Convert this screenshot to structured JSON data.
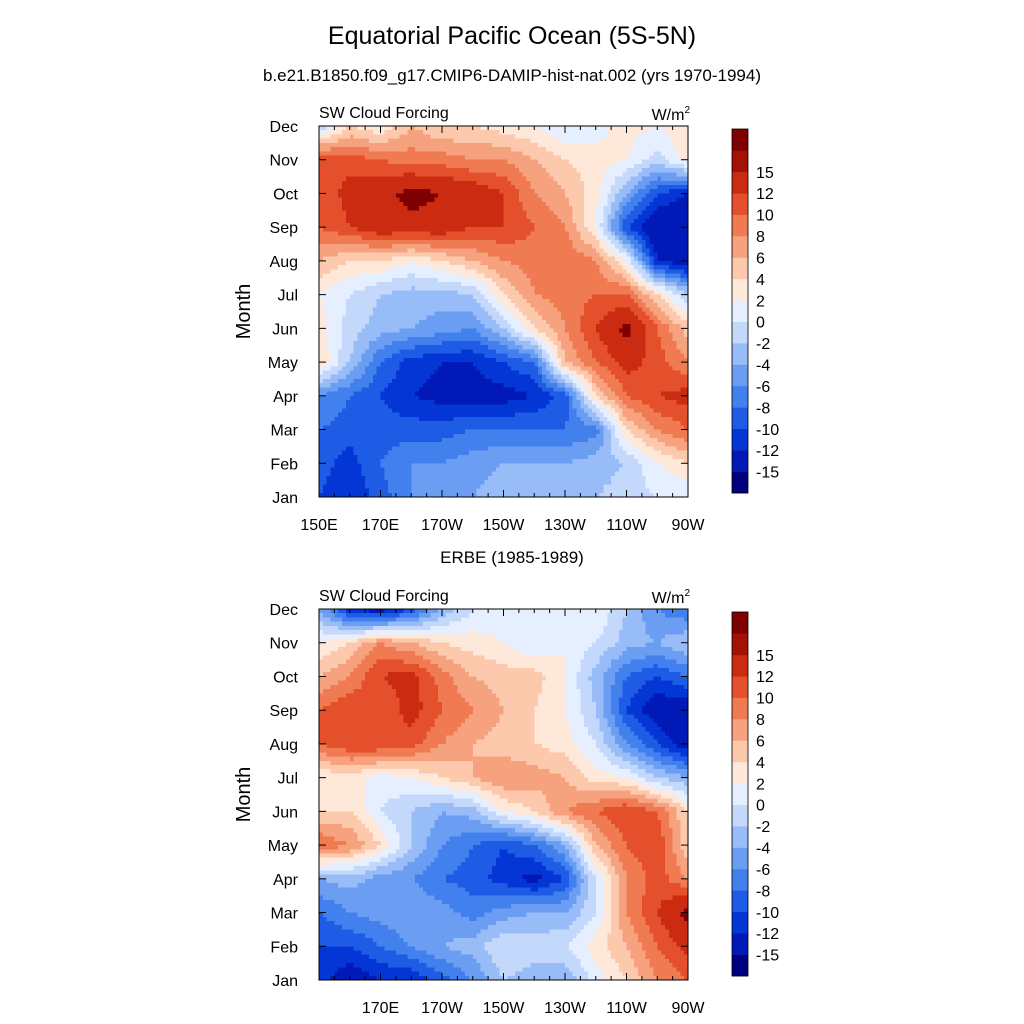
{
  "page": {
    "title": "Equatorial Pacific Ocean (5S-5N)",
    "subtitle": "b.e21.B1850.f09_g17.CMIP6-DAMIP-hist-nat.002 (yrs 1970-1994)",
    "second_panel_title": "ERBE (1985-1989)"
  },
  "colorbar": {
    "levels": [
      -16,
      -15,
      -12,
      -10,
      -8,
      -6,
      -4,
      -2,
      0,
      2,
      4,
      6,
      8,
      10,
      12,
      15,
      16
    ],
    "labels": [
      "-15",
      "-12",
      "-10",
      "-8",
      "-6",
      "-4",
      "-2",
      "0",
      "2",
      "4",
      "6",
      "8",
      "10",
      "12",
      "15"
    ],
    "colors": [
      "#00007f",
      "#0019b7",
      "#0436d6",
      "#1f5ce6",
      "#4280ee",
      "#6b9ef3",
      "#97bcf7",
      "#c3d8fb",
      "#e6efff",
      "#fde8d9",
      "#fcc9ad",
      "#f7a27f",
      "#f07a51",
      "#e4502b",
      "#cb2b10",
      "#a31204",
      "#7f0000"
    ]
  },
  "chart_data": [
    {
      "type": "heatmap",
      "left_label": "SW Cloud Forcing",
      "right_label": "W/m",
      "right_label_sup": "2",
      "ylabel": "Month",
      "xlim": [
        150,
        270
      ],
      "x_ticks": [
        150,
        170,
        190,
        210,
        230,
        250,
        270
      ],
      "x_ticklabels": [
        "150E",
        "170E",
        "170W",
        "150W",
        "130W",
        "110W",
        "90W"
      ],
      "y_ticklabels": [
        "Jan",
        "Feb",
        "Mar",
        "Apr",
        "May",
        "Jun",
        "Jul",
        "Aug",
        "Sep",
        "Oct",
        "Nov",
        "Dec"
      ],
      "x": [
        150,
        160,
        170,
        180,
        190,
        200,
        210,
        220,
        230,
        240,
        250,
        260,
        270
      ],
      "months": [
        "Jan",
        "Feb",
        "Mar",
        "Apr",
        "May",
        "Jun",
        "Jul",
        "Aug",
        "Sep",
        "Oct",
        "Nov",
        "Dec"
      ],
      "z": [
        [
          -10,
          -12,
          -9,
          -6,
          -5,
          -4,
          -3,
          -3,
          -3,
          -2,
          -1,
          0,
          0
        ],
        [
          -9,
          -11,
          -8,
          -6,
          -6,
          -5,
          -4,
          -4,
          -4,
          -3,
          -2,
          2,
          4
        ],
        [
          -8,
          -9,
          -9,
          -9,
          -9,
          -8,
          -8,
          -8,
          -8,
          -7,
          4,
          8,
          10
        ],
        [
          -6,
          -8,
          -10,
          -12,
          -13,
          -13,
          -13,
          -12,
          -9,
          4,
          10,
          12,
          13
        ],
        [
          4,
          -2,
          -8,
          -11,
          -12,
          -12,
          -10,
          -8,
          6,
          10,
          13,
          11,
          8
        ],
        [
          3,
          -1,
          -3,
          -4,
          -5,
          -6,
          -2,
          4,
          8,
          12,
          16,
          10,
          5
        ],
        [
          2,
          0,
          -2,
          -3,
          -3,
          -2,
          4,
          8,
          9,
          10,
          10,
          4,
          -2
        ],
        [
          6,
          4,
          4,
          2,
          4,
          6,
          8,
          9,
          10,
          8,
          2,
          -12,
          -14
        ],
        [
          10,
          12,
          14,
          14,
          14,
          12,
          12,
          10,
          8,
          2,
          -10,
          -15,
          -15
        ],
        [
          10,
          13,
          14,
          16,
          15,
          14,
          12,
          8,
          6,
          3,
          -4,
          -10,
          -12
        ],
        [
          12,
          11,
          10,
          9,
          9,
          8,
          8,
          6,
          4,
          3,
          2,
          -1,
          3
        ],
        [
          -2,
          4,
          2,
          6,
          4,
          4,
          3,
          2,
          0,
          1,
          3,
          2,
          4
        ]
      ]
    },
    {
      "type": "heatmap",
      "left_label": "SW Cloud Forcing",
      "right_label": "W/m",
      "right_label_sup": "2",
      "ylabel": "Month",
      "xlim": [
        150,
        270
      ],
      "x_ticks": [
        170,
        190,
        210,
        230,
        250,
        270
      ],
      "x_ticklabels": [
        "170E",
        "170W",
        "150W",
        "130W",
        "110W",
        "90W"
      ],
      "y_ticklabels": [
        "Jan",
        "Feb",
        "Mar",
        "Apr",
        "May",
        "Jun",
        "Jul",
        "Aug",
        "Sep",
        "Oct",
        "Nov",
        "Dec"
      ],
      "x": [
        150,
        160,
        170,
        180,
        190,
        200,
        210,
        220,
        230,
        240,
        250,
        260,
        270
      ],
      "months": [
        "Jan",
        "Feb",
        "Mar",
        "Apr",
        "May",
        "Jun",
        "Jul",
        "Aug",
        "Sep",
        "Oct",
        "Nov",
        "Dec"
      ],
      "z": [
        [
          -11,
          -14,
          -12,
          -12,
          -9,
          -6,
          -2,
          -3,
          -4,
          1,
          4,
          8,
          10
        ],
        [
          -10,
          -10,
          -8,
          -6,
          -4,
          -3,
          0,
          -1,
          0,
          3,
          6,
          10,
          13
        ],
        [
          -8,
          -6,
          -5,
          -4,
          -5,
          -7,
          -5,
          -4,
          -4,
          0,
          8,
          12,
          16
        ],
        [
          -4,
          -3,
          -5,
          -6,
          -8,
          -9,
          -11,
          -13,
          -10,
          0,
          8,
          11,
          8
        ],
        [
          10,
          8,
          4,
          -2,
          -6,
          -8,
          -10,
          -8,
          -4,
          6,
          10,
          12,
          4
        ],
        [
          4,
          4,
          0,
          -2,
          -4,
          -3,
          2,
          4,
          8,
          10,
          12,
          10,
          4
        ],
        [
          2,
          3,
          1,
          2,
          4,
          6,
          8,
          7,
          6,
          3,
          2,
          -2,
          -4
        ],
        [
          10,
          12,
          12,
          11,
          8,
          6,
          5,
          4,
          3,
          0,
          -6,
          -10,
          -14
        ],
        [
          10,
          12,
          10,
          13,
          10,
          8,
          6,
          4,
          2,
          -2,
          -10,
          -14,
          -14
        ],
        [
          6,
          8,
          12,
          13,
          9,
          6,
          5,
          5,
          2,
          -3,
          -8,
          -10,
          -8
        ],
        [
          2,
          4,
          8,
          6,
          4,
          3,
          2,
          0,
          2,
          0,
          -3,
          -4,
          -2
        ],
        [
          -4,
          -12,
          -14,
          -10,
          -4,
          0,
          1,
          0,
          1,
          2,
          -2,
          -6,
          -8
        ]
      ]
    }
  ]
}
